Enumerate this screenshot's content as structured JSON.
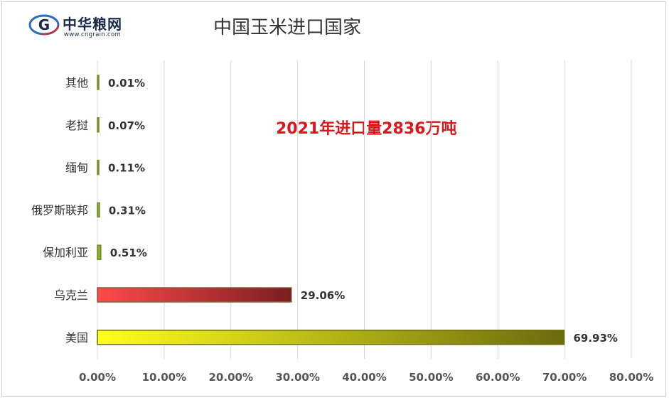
{
  "logo": {
    "name_cn": "中华粮网",
    "url": "www.cngrain.com",
    "mark_letter": "G"
  },
  "colors": {
    "ukraine_start": "#ff4a4a",
    "ukraine_end": "#7a1e22",
    "usa_start": "#ffff1a",
    "usa_end": "#6b6b10",
    "small_bar": "#8cb12f",
    "annotation": "#e0141a"
  },
  "chart_data": {
    "type": "bar",
    "orientation": "horizontal",
    "title": "中国玉米进口国家",
    "annotation": "2021年进口量2836万吨",
    "categories": [
      "其他",
      "老挝",
      "缅甸",
      "俄罗斯联邦",
      "保加利亚",
      "乌克兰",
      "美国"
    ],
    "values": [
      0.01,
      0.07,
      0.11,
      0.31,
      0.51,
      29.06,
      69.93
    ],
    "value_labels": [
      "0.01%",
      "0.07%",
      "0.11%",
      "0.31%",
      "0.51%",
      "29.06%",
      "69.93%"
    ],
    "xlim": [
      0,
      80
    ],
    "xticks": [
      "0.00%",
      "10.00%",
      "20.00%",
      "30.00%",
      "40.00%",
      "50.00%",
      "60.00%",
      "70.00%",
      "80.00%"
    ],
    "grid": true,
    "legend": "none"
  }
}
